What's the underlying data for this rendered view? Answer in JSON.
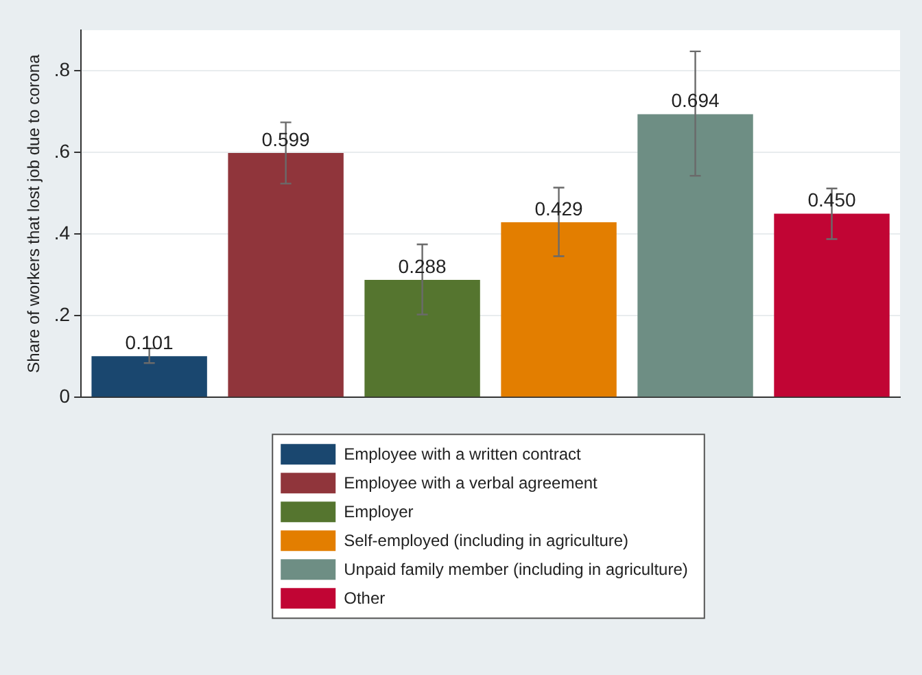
{
  "chart_data": {
    "type": "bar",
    "ylabel": "Share of workers that lost job due to corona",
    "categories": [
      null,
      null,
      null,
      null,
      null,
      null
    ],
    "series": [
      {
        "name": "Employee with a written contract",
        "color": "#1a476f",
        "values": [
          0.101,
          null,
          null,
          null,
          null,
          null
        ],
        "errors": [
          [
            0.084,
            0.12
          ],
          null,
          null,
          null,
          null,
          null
        ]
      },
      {
        "name": "Employee with a verbal agreement",
        "color": "#90353b",
        "values": [
          null,
          0.599,
          null,
          null,
          null,
          null
        ],
        "errors": [
          null,
          [
            0.524,
            0.674
          ],
          null,
          null,
          null,
          null
        ]
      },
      {
        "name": "Employer",
        "color": "#55752f",
        "values": [
          null,
          null,
          0.288,
          null,
          null,
          null
        ],
        "errors": [
          null,
          null,
          [
            0.203,
            0.375
          ],
          null,
          null,
          null
        ]
      },
      {
        "name": "Self-employed (including in agriculture)",
        "color": "#e37e00",
        "values": [
          null,
          null,
          null,
          0.429,
          null,
          null
        ],
        "errors": [
          null,
          null,
          null,
          [
            0.346,
            0.514
          ],
          null,
          null
        ]
      },
      {
        "name": "Unpaid family member (including in agriculture)",
        "color": "#6e8e84",
        "values": [
          null,
          null,
          null,
          null,
          0.694,
          null
        ],
        "errors": [
          null,
          null,
          null,
          null,
          [
            0.543,
            0.848
          ],
          null
        ]
      },
      {
        "name": "Other",
        "color": "#c10534",
        "values": [
          null,
          null,
          null,
          null,
          null,
          0.45
        ],
        "errors": [
          null,
          null,
          null,
          null,
          null,
          [
            0.388,
            0.512
          ]
        ],
        "value_labels": [
          null,
          null,
          null,
          null,
          null,
          "0.450"
        ]
      }
    ],
    "ylim": [
      0,
      0.9
    ],
    "yticks": [
      0,
      {
        "value": 0.2,
        "label": ".2"
      },
      {
        "value": 0.4,
        "label": ".4"
      },
      {
        "value": 0.6,
        "label": ".6"
      },
      {
        "value": 0.8,
        "label": ".8"
      }
    ],
    "grid": "y",
    "data_labels": true,
    "legend": "bottom"
  }
}
